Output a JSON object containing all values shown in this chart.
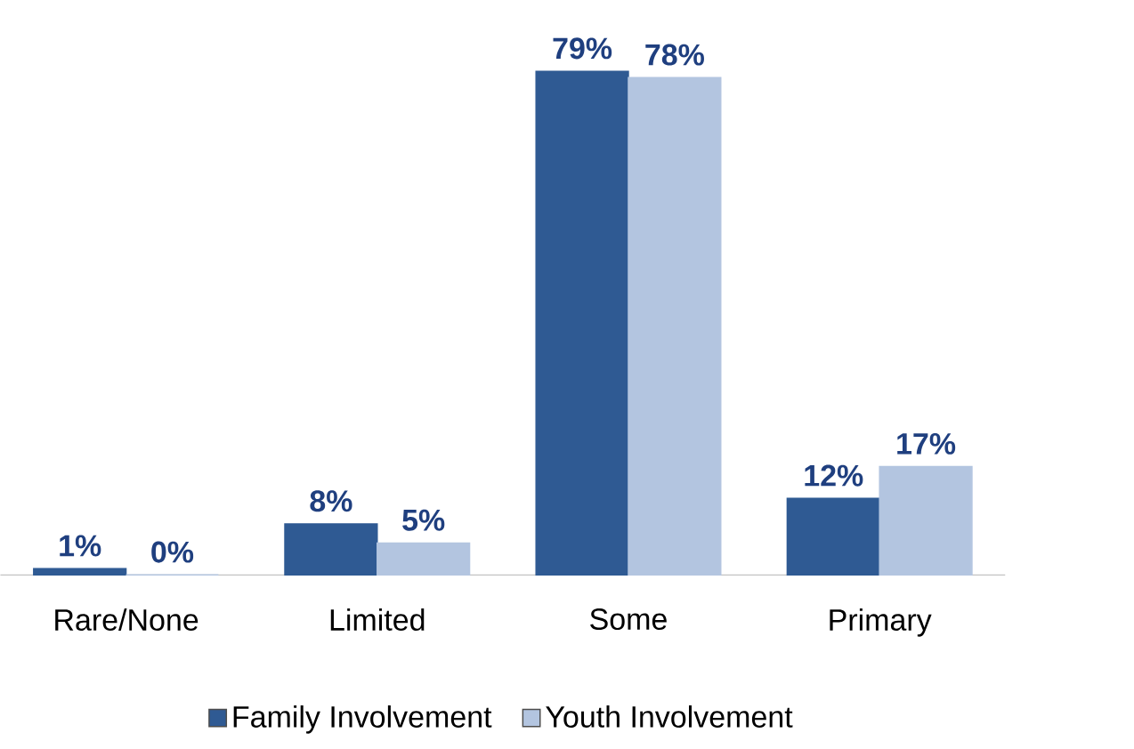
{
  "chart_data": {
    "type": "bar",
    "categories": [
      "Rare/None",
      "Limited",
      "Some",
      "Primary"
    ],
    "legend": "bottom",
    "series": [
      {
        "name": "Family Involvement",
        "color": "#2f5a93",
        "values": [
          1,
          8,
          79,
          12
        ],
        "value_labels": [
          "1%",
          "8%",
          "79%",
          "12%"
        ]
      },
      {
        "name": "Youth Involvement",
        "color": "#b3c5e0",
        "values": [
          0,
          5,
          78,
          17
        ],
        "value_labels": [
          "0%",
          "5%",
          "78%",
          "17%"
        ]
      }
    ]
  }
}
